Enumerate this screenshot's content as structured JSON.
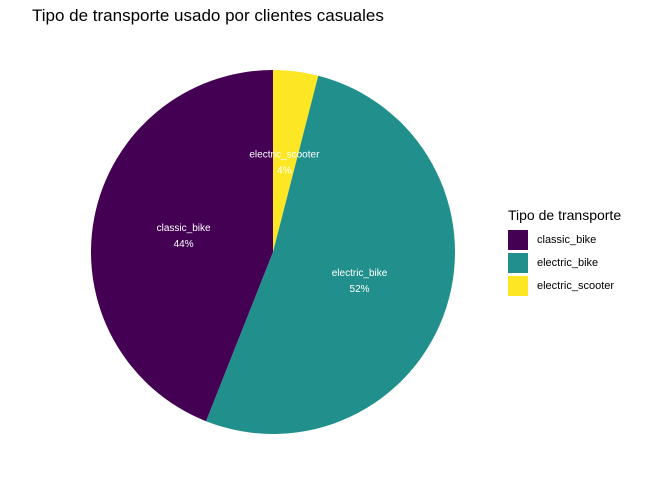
{
  "chart_data": {
    "type": "pie",
    "title": "Tipo de transporte usado por clientes casuales",
    "legend_title": "Tipo de transporte",
    "legend_position": "right",
    "grid": false,
    "slices": [
      {
        "name": "classic_bike",
        "value": 44,
        "label": "44%",
        "color": "#440154"
      },
      {
        "name": "electric_bike",
        "value": 52,
        "label": "52%",
        "color": "#21908C"
      },
      {
        "name": "electric_scooter",
        "value": 4,
        "label": "4%",
        "color": "#FDE725"
      }
    ]
  }
}
